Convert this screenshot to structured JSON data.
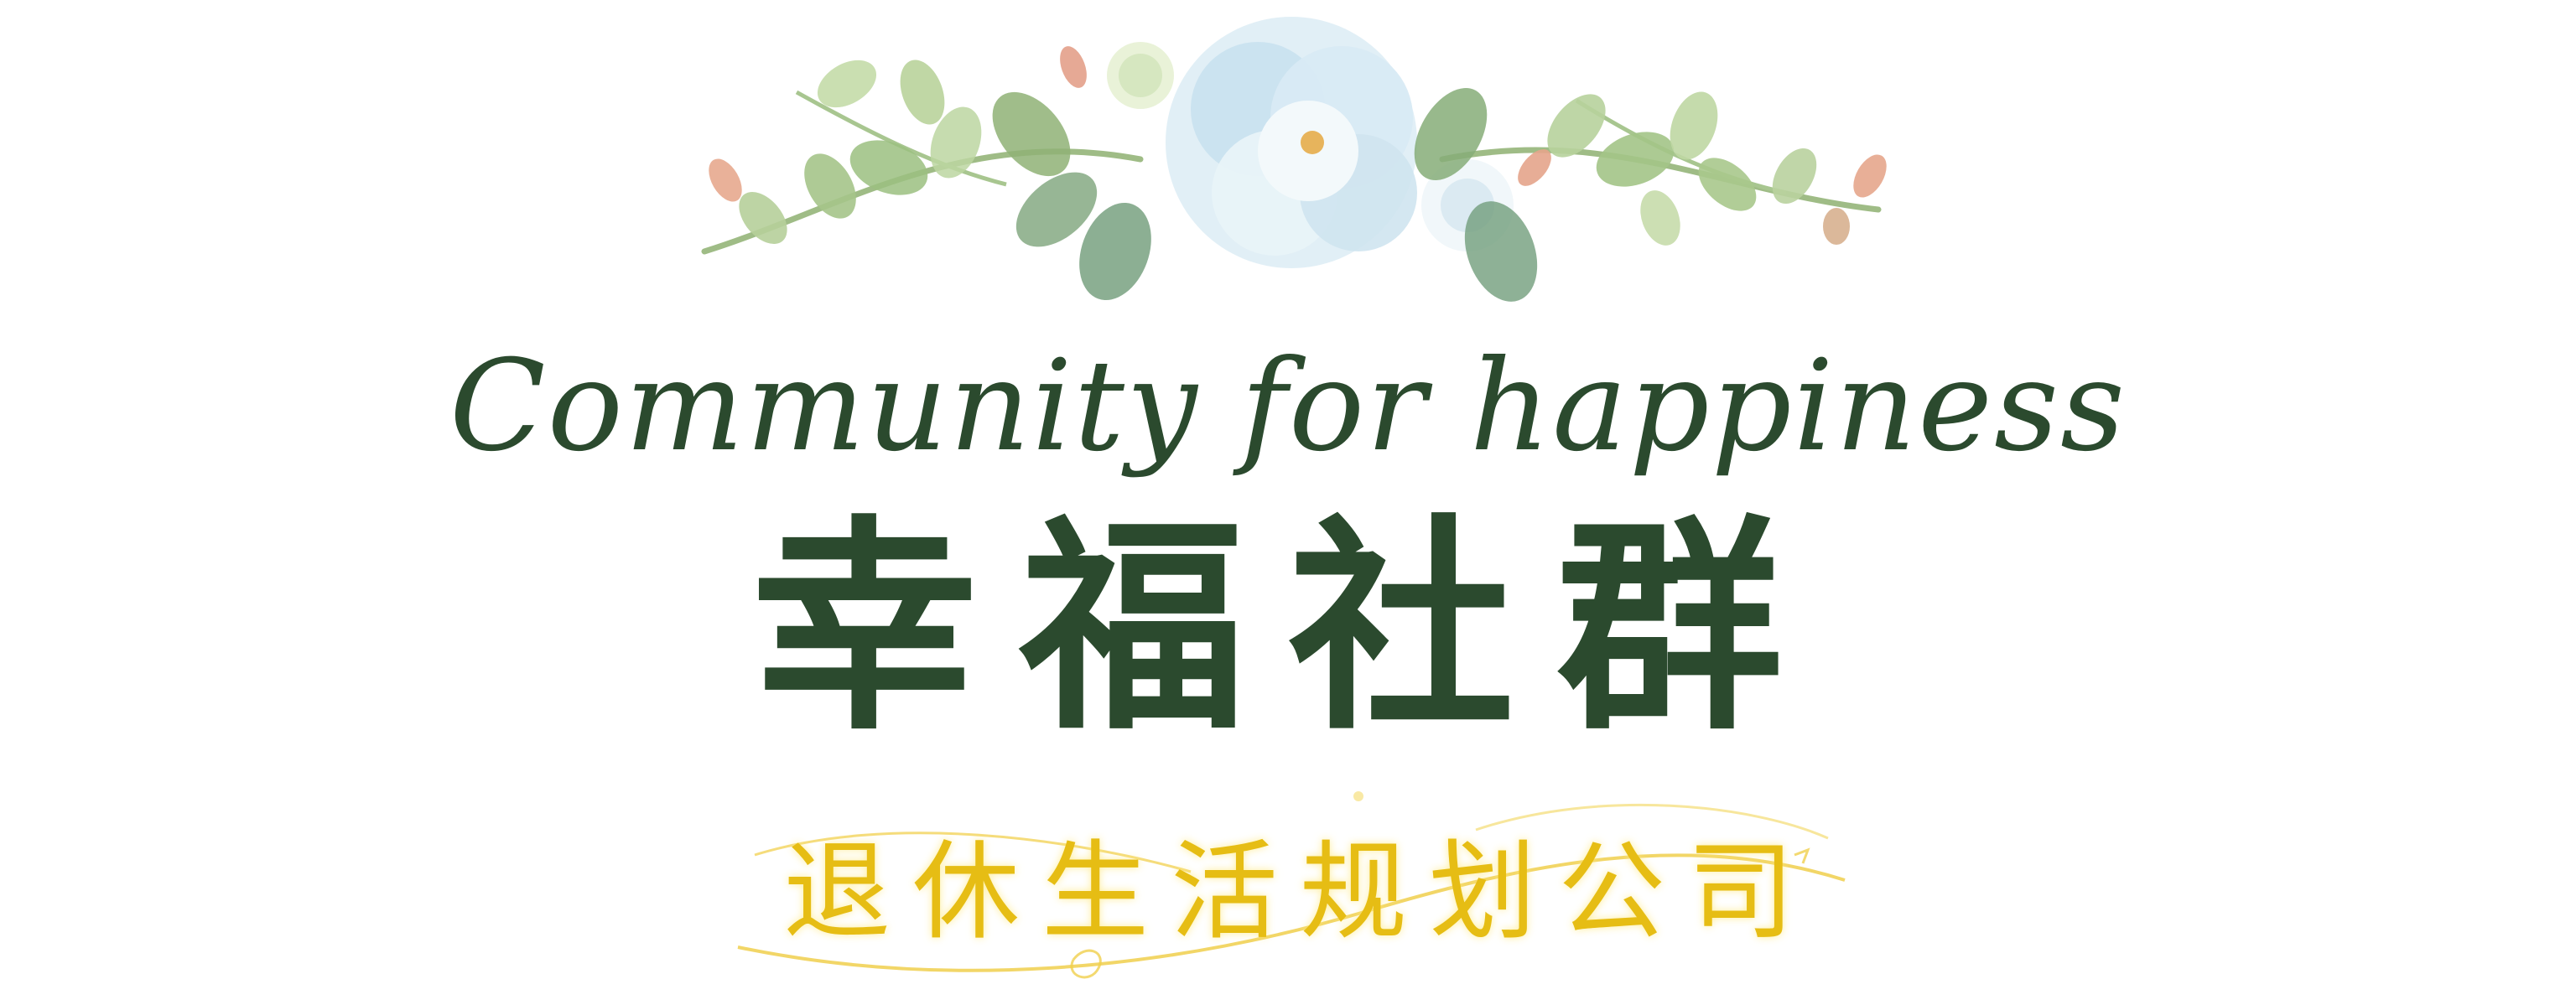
{
  "header": {
    "english_title": "Community for happiness",
    "chinese_title": "幸福社群"
  },
  "subtitle": {
    "text": "退休生活规划公司"
  },
  "colors": {
    "title_green": "#2b4a2e",
    "subtitle_gold": "#e6bd14",
    "background": "#ffffff"
  },
  "decorations": {
    "top": "watercolor-floral-garland-icon",
    "bottom": "golden-swirl-icon"
  }
}
